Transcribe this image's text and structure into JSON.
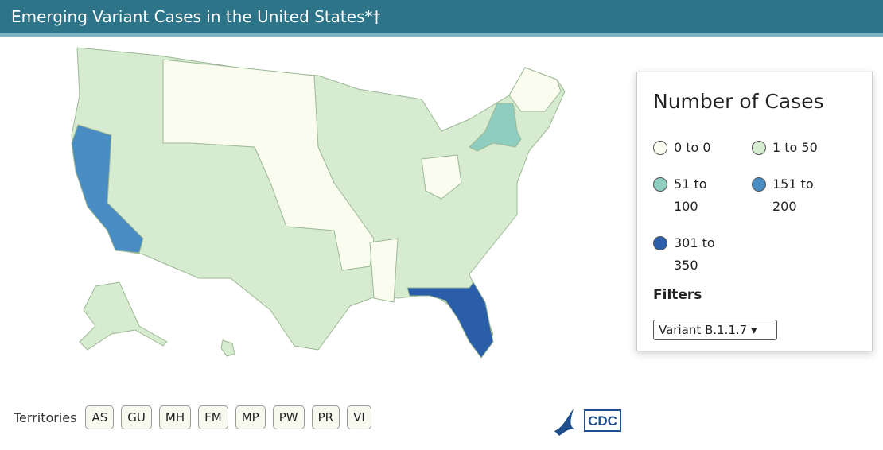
{
  "header": {
    "title": "Emerging Variant Cases in the United States*†"
  },
  "legend": {
    "title": "Number of Cases",
    "items": [
      {
        "label": "0 to 0",
        "color": "#fbfcf0"
      },
      {
        "label": "1 to 50",
        "color": "#d6ebcf"
      },
      {
        "label": "51 to 100",
        "color": "#8ecdbf"
      },
      {
        "label": "151 to 200",
        "color": "#4a8cc4"
      },
      {
        "label": "301 to 350",
        "color": "#2a5ea8"
      }
    ]
  },
  "filters": {
    "label": "Filters",
    "selected": "Variant B.1.1.7"
  },
  "territories": {
    "label": "Territories",
    "buttons": [
      "AS",
      "GU",
      "MH",
      "FM",
      "MP",
      "PW",
      "PR",
      "VI"
    ]
  },
  "logo": {
    "text": "CDC"
  }
}
